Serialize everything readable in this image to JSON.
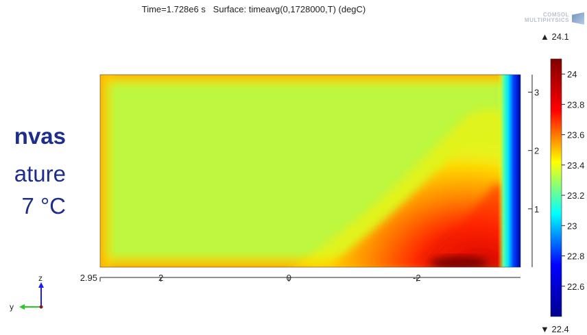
{
  "slide_fragments": {
    "line1": "nvas",
    "line2": "ature",
    "line3": "7 °C"
  },
  "logo": {
    "line1": "COMSOL",
    "line2": "MULTIPHYSICS"
  },
  "triad": {
    "vertical_label": "z",
    "horizontal_label": "y",
    "vertical_color": "#1a1aff",
    "horizontal_color": "#22cc22"
  },
  "chart_data": {
    "type": "heatmap",
    "title": "Time=1.728e6 s   Surface: timeavg(0,1728000,T) (degC)",
    "x_axis": {
      "reversed": true,
      "range": [
        2.95,
        -3.62
      ],
      "ticks": [
        2.95,
        2,
        0,
        -2
      ],
      "tick_labels": [
        "2.95",
        "2",
        "0",
        "-2"
      ]
    },
    "y_axis": {
      "range": [
        0,
        3.3
      ],
      "ticks": [
        1,
        2,
        3
      ],
      "tick_labels": [
        "1",
        "2",
        "3"
      ]
    },
    "colorbar": {
      "min": 22.4,
      "max": 24.1,
      "min_label": "▼ 22.4",
      "max_label": "▲ 24.1",
      "ticks": [
        24,
        23.8,
        23.6,
        23.4,
        23.2,
        23,
        22.8,
        22.6
      ],
      "tick_labels": [
        "24",
        "23.8",
        "23.6",
        "23.4",
        "23.2",
        "23",
        "22.8",
        "22.6"
      ],
      "colormap": [
        "#00008f",
        "#0000ff",
        "#00ffff",
        "#ffff00",
        "#ff0000",
        "#800000"
      ]
    },
    "field": {
      "background_value": 23.42,
      "border_value": 23.62,
      "hot_region": {
        "y_from": -0.8,
        "y_to": -3.45,
        "z_peak": 0.0,
        "peak_value": 24.08
      },
      "cold_wall": {
        "y_from": -3.45,
        "y_to": -3.62,
        "min_value": 22.45
      }
    }
  }
}
